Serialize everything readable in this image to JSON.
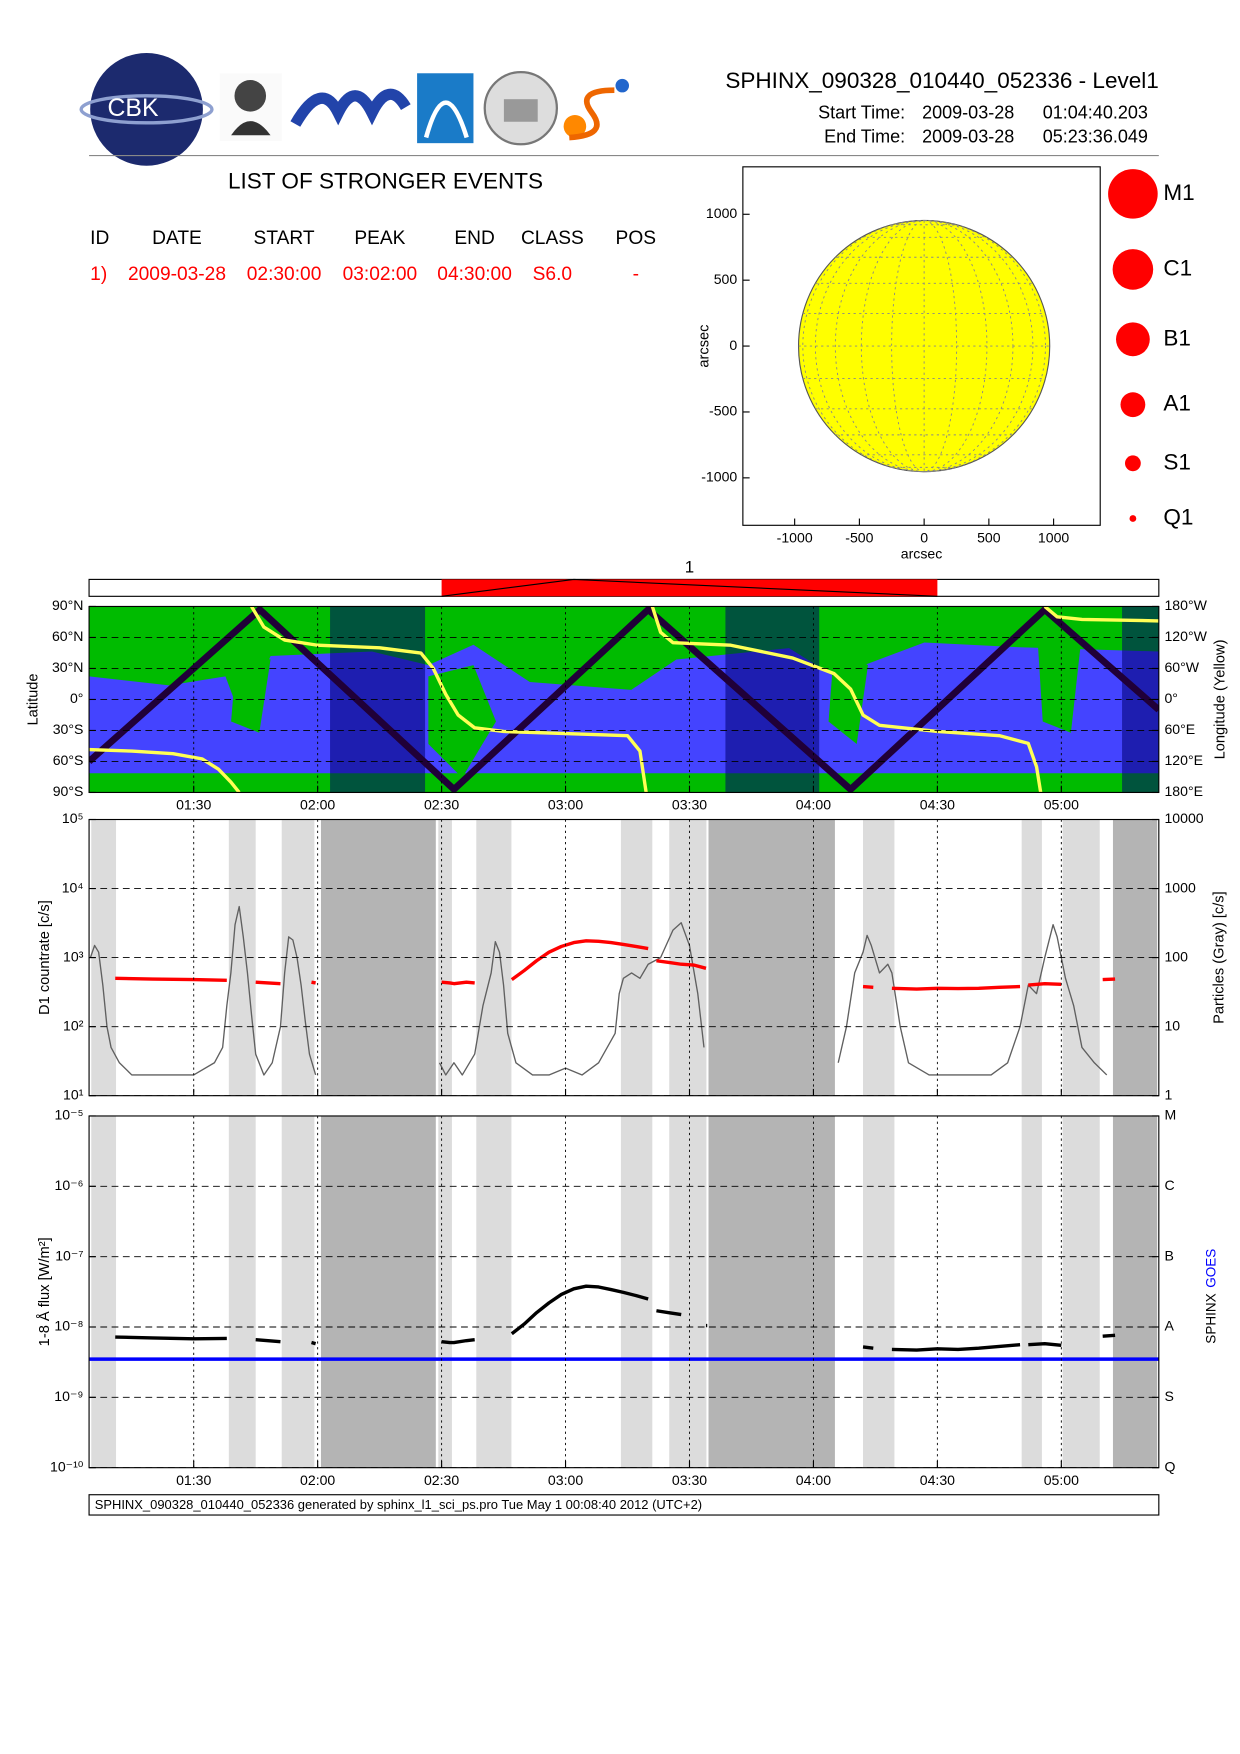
{
  "header": {
    "title": "SPHINX_090328_010440_052336 - Level1",
    "start_label": "Start Time:",
    "start_date": "2009-03-28",
    "start_time": "01:04:40.203",
    "end_label": "End Time:",
    "end_date": "2009-03-28",
    "end_time": "05:23:36.049"
  },
  "logos": {
    "cbk": "CBK"
  },
  "events_table": {
    "title": "LIST OF STRONGER EVENTS",
    "columns": [
      "ID",
      "DATE",
      "START",
      "PEAK",
      "END",
      "CLASS",
      "POS"
    ],
    "rows": [
      [
        "1)",
        "2009-03-28",
        "02:30:00",
        "03:02:00",
        "04:30:00",
        "S6.0",
        "-"
      ]
    ],
    "row_color": "#ff0000"
  },
  "footer": "SPHINX_090328_010440_052336 generated by sphinx_l1_sci_ps.pro Tue May  1 00:08:40 2012 (UTC+2)",
  "chart_data": [
    {
      "type": "disk",
      "xlabel": "arcsec",
      "ylabel": "arcsec",
      "xlim": [
        -1400,
        1360
      ],
      "ylim": [
        -1360,
        1360
      ],
      "xticks": [
        -1000,
        -500,
        0,
        500,
        1000
      ],
      "yticks": [
        -1000,
        -500,
        0,
        500,
        1000
      ],
      "radius": 970,
      "color": "#ffff00",
      "size_legend": {
        "labels": [
          "M1",
          "C1",
          "B1",
          "A1",
          "S1",
          "Q1"
        ],
        "color": "#ff0000"
      }
    },
    {
      "type": "events",
      "xlim": [
        64.67,
        323.6
      ],
      "events": [
        {
          "label": "1",
          "start": 150,
          "peak": 182,
          "end": 270,
          "color": "#ff0000"
        }
      ]
    },
    {
      "type": "orbit",
      "ylabel": "Latitude",
      "y2label": "Longitude (Yellow)",
      "xlim": [
        64.67,
        323.6
      ],
      "xticks": [
        {
          "value": 90,
          "label": "01:30"
        },
        {
          "value": 120,
          "label": "02:00"
        },
        {
          "value": 150,
          "label": "02:30"
        },
        {
          "value": 180,
          "label": "03:00"
        },
        {
          "value": 210,
          "label": "03:30"
        },
        {
          "value": 240,
          "label": "04:00"
        },
        {
          "value": 270,
          "label": "04:30"
        },
        {
          "value": 300,
          "label": "05:00"
        }
      ],
      "ylim": [
        -90,
        90
      ],
      "yticks": [
        {
          "value": 90,
          "label": "90°N"
        },
        {
          "value": 60,
          "label": "60°N"
        },
        {
          "value": 30,
          "label": "30°N"
        },
        {
          "value": 0,
          "label": "0°"
        },
        {
          "value": -30,
          "label": "30°S"
        },
        {
          "value": -60,
          "label": "60°S"
        },
        {
          "value": -90,
          "label": "90°S"
        }
      ],
      "y2lim": [
        -180,
        180
      ],
      "y2ticks": [
        {
          "value": 180,
          "label": "180°W"
        },
        {
          "value": 120,
          "label": "120°W"
        },
        {
          "value": 60,
          "label": "60°W"
        },
        {
          "value": 0,
          "label": "0°"
        },
        {
          "value": -60,
          "label": "60°E"
        },
        {
          "value": -120,
          "label": "120°E"
        },
        {
          "value": -180,
          "label": "180°E"
        }
      ],
      "grid": true,
      "background": "#4444ff",
      "eclipse_color": "#000070",
      "eclipses": [
        [
          123,
          146
        ],
        [
          218.7,
          241.4
        ],
        [
          314.7,
          323.6
        ]
      ],
      "series": [
        {
          "color": "#200038",
          "x": [
            64.67,
            106,
            153,
            200,
            249,
            296,
            323.6
          ],
          "values": [
            -60,
            87,
            -87,
            87,
            -87,
            87,
            -10
          ]
        },
        {
          "color": "#ffff55",
          "axis": "y2",
          "x": [
            64.67,
            75,
            85,
            92,
            96,
            99,
            101,
            102.5,
            104,
            107,
            112,
            120,
            135,
            145,
            148,
            151,
            154,
            158,
            165,
            180,
            195,
            198,
            199.5,
            200.5,
            201,
            203,
            206,
            220,
            235,
            245,
            249,
            252,
            256,
            270,
            285,
            292,
            294,
            295,
            295.5,
            296,
            299,
            305,
            323.6
          ],
          "values": [
            -97,
            -100,
            -105,
            -115,
            -135,
            -160,
            -180,
            null,
            180,
            140,
            115,
            105,
            100,
            90,
            60,
            10,
            -30,
            -55,
            -62,
            -66,
            -70,
            -100,
            -180,
            null,
            180,
            130,
            110,
            105,
            80,
            50,
            20,
            -30,
            -50,
            -62,
            -70,
            -85,
            -130,
            -180,
            null,
            180,
            160,
            155,
            152
          ]
        }
      ]
    },
    {
      "type": "logline",
      "ylabel": "D1 countrate [c/s]",
      "y2label": "Particles (Gray) [c/s]",
      "log": true,
      "xticklabels": false,
      "xlim": [
        64.67,
        323.6
      ],
      "xticks": [
        {
          "value": 90,
          "label": "01:30"
        },
        {
          "value": 120,
          "label": "02:00"
        },
        {
          "value": 150,
          "label": "02:30"
        },
        {
          "value": 180,
          "label": "03:00"
        },
        {
          "value": 210,
          "label": "03:30"
        },
        {
          "value": 240,
          "label": "04:00"
        },
        {
          "value": 270,
          "label": "04:30"
        },
        {
          "value": 300,
          "label": "05:00"
        }
      ],
      "ylim": [
        10,
        100000
      ],
      "yticks": [
        {
          "value": 10,
          "label": "10¹"
        },
        {
          "value": 100,
          "label": "10²"
        },
        {
          "value": 1000,
          "label": "10³"
        },
        {
          "value": 10000,
          "label": "10⁴"
        },
        {
          "value": 100000,
          "label": "10⁵"
        }
      ],
      "y2lim": [
        1,
        10000
      ],
      "y2ticks": [
        1,
        10,
        100,
        1000,
        10000
      ],
      "grid": true,
      "band_colors": [
        "#dcdcdc",
        "#b4b4b4"
      ],
      "light_bands": [
        [
          65.2,
          71.2
        ],
        [
          98.5,
          105
        ],
        [
          111.3,
          119.2
        ],
        [
          149.2,
          152.5
        ],
        [
          158.4,
          166.9
        ],
        [
          193.4,
          201
        ],
        [
          205.1,
          214.1
        ],
        [
          252,
          259.6
        ],
        [
          290.4,
          295.3
        ],
        [
          300.3,
          309.3
        ]
      ],
      "dark_bands": [
        [
          120.8,
          148.6
        ],
        [
          214.6,
          245.2
        ],
        [
          312.5,
          323.2
        ]
      ],
      "series": [
        {
          "color": "#606060",
          "axis": "y2",
          "x": [
            65,
            66,
            67,
            68,
            69,
            70,
            72,
            75,
            80,
            85,
            90,
            95,
            97,
            98,
            99,
            100,
            101,
            102,
            103,
            104,
            105,
            107,
            109,
            111,
            112,
            113,
            114,
            115,
            116,
            117,
            118,
            119.5,
            130,
            149.5,
            151,
            153,
            155,
            158,
            160,
            162,
            163,
            164,
            165,
            166,
            168,
            172,
            176,
            180,
            184,
            188,
            192,
            193,
            194,
            196,
            198,
            200,
            203,
            206,
            208,
            210,
            212,
            213.5,
            230,
            246,
            248,
            250,
            252,
            253,
            254,
            256,
            258,
            259,
            261,
            263,
            268,
            273,
            278,
            283,
            287,
            290,
            292,
            294,
            296,
            298,
            299,
            301,
            303,
            305,
            308,
            311
          ],
          "values": [
            100,
            150,
            120,
            40,
            10,
            5,
            3,
            2,
            2,
            2,
            2,
            3,
            5,
            20,
            60,
            300,
            550,
            200,
            60,
            15,
            4,
            2,
            3,
            10,
            60,
            200,
            180,
            100,
            40,
            12,
            4,
            2,
            null,
            3,
            2,
            3,
            2,
            4,
            20,
            60,
            170,
            120,
            40,
            8,
            3,
            2,
            2,
            2.5,
            2,
            3,
            8,
            30,
            50,
            60,
            50,
            80,
            100,
            250,
            320,
            150,
            30,
            5,
            null,
            3,
            10,
            60,
            120,
            210,
            150,
            60,
            80,
            60,
            10,
            3,
            2,
            2,
            2,
            2,
            3,
            10,
            40,
            30,
            100,
            300,
            200,
            50,
            20,
            5,
            3,
            2
          ]
        },
        {
          "color": "#ff0000",
          "x": [
            71,
            80,
            90,
            98,
            99,
            105,
            108,
            111,
            115,
            118.5,
            119.5,
            130,
            150,
            152,
            153,
            156,
            158,
            162,
            167,
            170,
            173,
            176,
            179,
            182,
            185,
            188,
            191,
            194,
            197,
            200,
            201,
            202,
            205,
            208,
            211,
            214,
            230,
            252,
            254.5,
            257,
            259,
            265,
            270,
            275,
            280,
            285,
            290,
            291,
            292,
            296,
            300,
            305,
            310,
            313
          ],
          "values": [
            500,
            490,
            480,
            470,
            null,
            440,
            430,
            420,
            null,
            440,
            430,
            null,
            440,
            430,
            420,
            440,
            430,
            null,
            480,
            650,
            900,
            1200,
            1450,
            1650,
            1750,
            1720,
            1650,
            1550,
            1450,
            1350,
            null,
            900,
            850,
            800,
            780,
            700,
            null,
            380,
            370,
            null,
            360,
            350,
            360,
            355,
            360,
            370,
            380,
            null,
            400,
            420,
            410,
            null,
            480,
            490
          ]
        }
      ]
    },
    {
      "type": "logline",
      "ylabel": "1-8 Å flux [W/m²]",
      "log": true,
      "xlim": [
        64.67,
        323.6
      ],
      "xticks": [
        {
          "value": 90,
          "label": "01:30"
        },
        {
          "value": 120,
          "label": "02:00"
        },
        {
          "value": 150,
          "label": "02:30"
        },
        {
          "value": 180,
          "label": "03:00"
        },
        {
          "value": 210,
          "label": "03:30"
        },
        {
          "value": 240,
          "label": "04:00"
        },
        {
          "value": 270,
          "label": "04:30"
        },
        {
          "value": 300,
          "label": "05:00"
        }
      ],
      "ylim": [
        1e-10,
        1e-05
      ],
      "yticks": [
        {
          "value": 1e-10,
          "label": "10⁻¹⁰"
        },
        {
          "value": 1e-09,
          "label": "10⁻⁹"
        },
        {
          "value": 1e-08,
          "label": "10⁻⁸"
        },
        {
          "value": 1e-07,
          "label": "10⁻⁷"
        },
        {
          "value": 1e-06,
          "label": "10⁻⁶"
        },
        {
          "value": 1e-05,
          "label": "10⁻⁵"
        }
      ],
      "y2lim": [
        1e-10,
        1e-05
      ],
      "y2ticks": [
        {
          "value": 1e-10,
          "label": "Q"
        },
        {
          "value": 1e-09,
          "label": "S"
        },
        {
          "value": 1e-08,
          "label": "A"
        },
        {
          "value": 1e-07,
          "label": "B"
        },
        {
          "value": 1e-06,
          "label": "C"
        },
        {
          "value": 1e-05,
          "label": "M"
        }
      ],
      "grid": true,
      "series": [
        {
          "name": "SPHINX",
          "color": "#000000",
          "x": [
            71,
            80,
            90,
            98,
            99,
            105,
            108,
            111,
            115,
            118.5,
            119.5,
            130,
            150,
            152,
            153,
            156,
            158,
            162,
            167,
            170,
            173,
            176,
            179,
            182,
            185,
            188,
            191,
            194,
            197,
            200,
            201,
            202,
            205,
            208,
            211,
            214,
            214.3,
            230,
            252,
            254.5,
            257,
            259,
            265,
            270,
            275,
            280,
            285,
            290,
            291,
            292,
            296,
            300,
            305,
            310,
            313
          ],
          "values": [
            7.2e-09,
            7e-09,
            6.8e-09,
            6.9e-09,
            null,
            6.6e-09,
            6.4e-09,
            6.2e-09,
            null,
            6e-09,
            5.8e-09,
            null,
            6.2e-09,
            6e-09,
            6e-09,
            6.4e-09,
            6.6e-09,
            null,
            8e-09,
            1.1e-08,
            1.6e-08,
            2.2e-08,
            2.9e-08,
            3.5e-08,
            3.8e-08,
            3.7e-08,
            3.4e-08,
            3.1e-08,
            2.8e-08,
            2.5e-08,
            null,
            1.7e-08,
            1.6e-08,
            1.5e-08,
            null,
            1.05e-08,
            1.05e-08,
            null,
            5.2e-09,
            5e-09,
            null,
            4.8e-09,
            4.7e-09,
            4.9e-09,
            4.8e-09,
            5e-09,
            5.3e-09,
            5.6e-09,
            null,
            5.6e-09,
            5.8e-09,
            5.5e-09,
            null,
            7.4e-09,
            7.6e-09
          ]
        },
        {
          "name": "GOES",
          "color": "#0000ff",
          "x": [
            64.67,
            323.6
          ],
          "values": [
            3.5e-09,
            3.5e-09
          ]
        }
      ]
    }
  ]
}
